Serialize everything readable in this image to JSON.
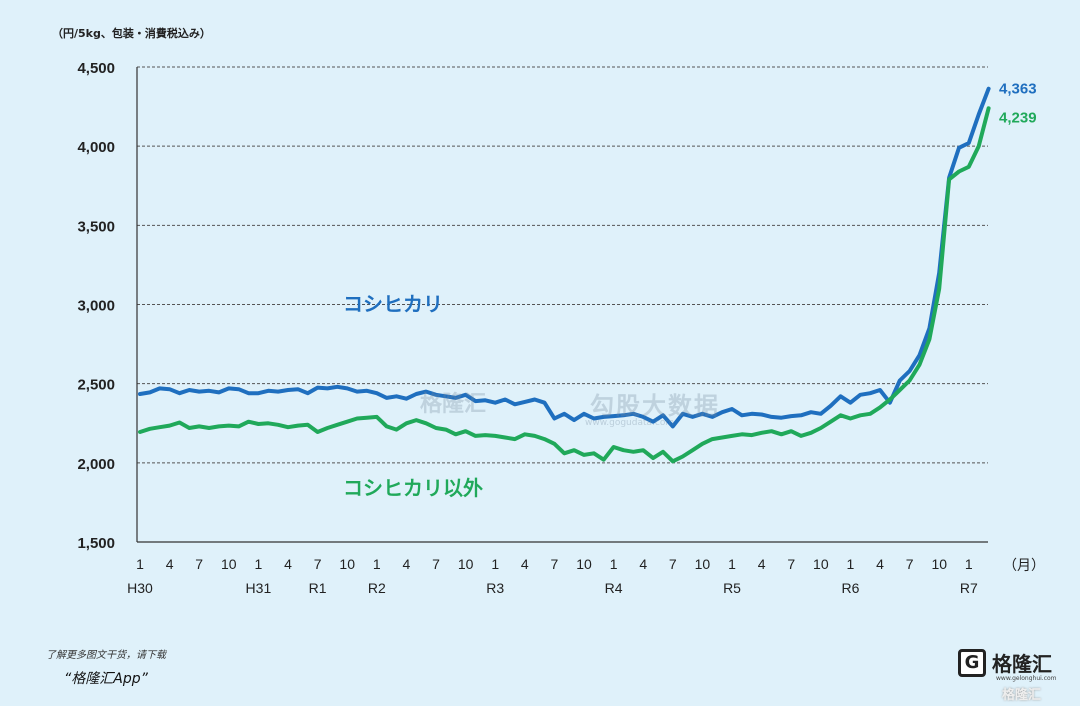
{
  "unit_label": "（円/5kg、包装・消費税込み）",
  "watermark": {
    "left": "格隆汇",
    "right": "勾股大数据",
    "url": "www.gogudata.com"
  },
  "footer": {
    "line1": "了解更多图文干货，请下载",
    "line2": "“格隆汇App”"
  },
  "logo": {
    "text": "格隆汇",
    "mark": "G",
    "url": "www.gelonghui.com",
    "corner": "格隆汇"
  },
  "chart_data": {
    "type": "line",
    "title": "",
    "xlabel": "（月）",
    "ylabel": "",
    "ylim": [
      1500,
      4500
    ],
    "yticks": [
      1500,
      2000,
      2500,
      3000,
      3500,
      4000,
      4500
    ],
    "ytick_labels": [
      "1,500",
      "2,000",
      "2,500",
      "3,000",
      "3,500",
      "4,000",
      "4,500"
    ],
    "grid": true,
    "month_labels": [
      "1",
      "4",
      "7",
      "10",
      "1",
      "4",
      "7",
      "10",
      "1",
      "4",
      "7",
      "10",
      "1",
      "4",
      "7",
      "10",
      "1",
      "4",
      "7",
      "10",
      "1",
      "4",
      "7",
      "10",
      "1",
      "4",
      "7",
      "10",
      "1"
    ],
    "year_labels": [
      {
        "label": "H30",
        "month_index": 0
      },
      {
        "label": "H31",
        "month_index": 12
      },
      {
        "label": "R1",
        "month_index": 18
      },
      {
        "label": "R2",
        "month_index": 24
      },
      {
        "label": "R3",
        "month_index": 36
      },
      {
        "label": "R4",
        "month_index": 48
      },
      {
        "label": "R5",
        "month_index": 60
      },
      {
        "label": "R6",
        "month_index": 72
      },
      {
        "label": "R7",
        "month_index": 84
      }
    ],
    "series": [
      {
        "name": "コシヒカリ",
        "color": "#1f6fbf",
        "end_label": "4,363",
        "values": [
          2435,
          2445,
          2470,
          2465,
          2440,
          2460,
          2450,
          2455,
          2445,
          2470,
          2465,
          2440,
          2440,
          2455,
          2450,
          2460,
          2465,
          2440,
          2475,
          2470,
          2480,
          2470,
          2450,
          2455,
          2440,
          2410,
          2420,
          2405,
          2435,
          2450,
          2430,
          2420,
          2410,
          2430,
          2390,
          2395,
          2380,
          2400,
          2370,
          2385,
          2400,
          2380,
          2280,
          2310,
          2270,
          2310,
          2280,
          2290,
          2295,
          2300,
          2310,
          2290,
          2260,
          2300,
          2230,
          2310,
          2290,
          2310,
          2290,
          2320,
          2340,
          2300,
          2310,
          2305,
          2290,
          2285,
          2295,
          2300,
          2320,
          2310,
          2360,
          2420,
          2380,
          2430,
          2440,
          2460,
          2380,
          2520,
          2580,
          2680,
          2850,
          3200,
          3800,
          3990,
          4020,
          4200,
          4363
        ]
      },
      {
        "name": "コシヒカリ以外",
        "color": "#20a95a",
        "end_label": "4,239",
        "values": [
          2195,
          2215,
          2225,
          2235,
          2255,
          2220,
          2230,
          2220,
          2230,
          2235,
          2230,
          2260,
          2245,
          2250,
          2240,
          2225,
          2235,
          2240,
          2195,
          2220,
          2240,
          2260,
          2280,
          2285,
          2290,
          2230,
          2210,
          2250,
          2270,
          2250,
          2220,
          2210,
          2180,
          2200,
          2170,
          2175,
          2170,
          2160,
          2150,
          2180,
          2170,
          2150,
          2120,
          2060,
          2080,
          2050,
          2060,
          2020,
          2100,
          2080,
          2070,
          2080,
          2030,
          2070,
          2010,
          2040,
          2080,
          2120,
          2150,
          2160,
          2170,
          2180,
          2175,
          2190,
          2200,
          2180,
          2200,
          2170,
          2190,
          2220,
          2260,
          2300,
          2280,
          2300,
          2310,
          2350,
          2400,
          2460,
          2520,
          2620,
          2780,
          3100,
          3790,
          3840,
          3870,
          4000,
          4239
        ]
      }
    ]
  }
}
